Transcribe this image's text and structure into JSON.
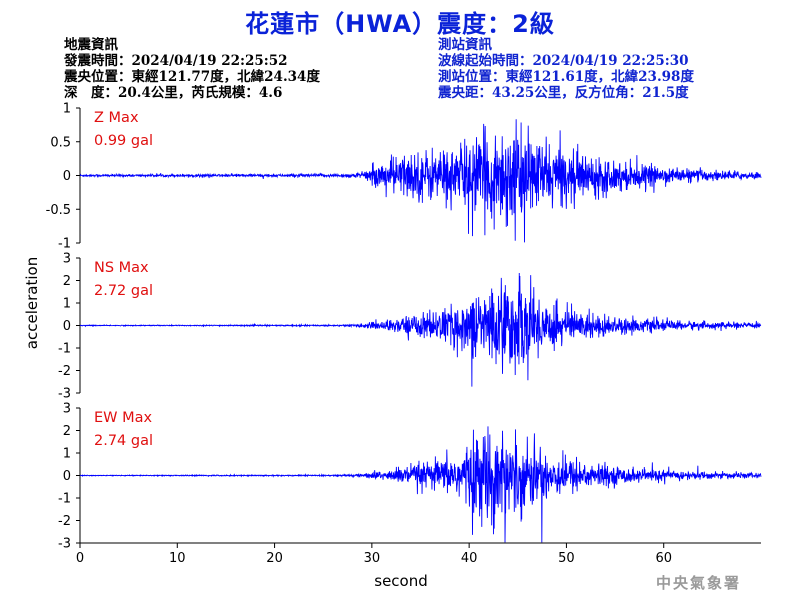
{
  "title": "花蓮市（HWA）震度：2級",
  "quake_info": {
    "heading": "地震資訊",
    "time": "發震時間：2024/04/19 22:25:52",
    "location": "震央位置：東經121.77度，北緯24.34度",
    "depth": "深　度：20.4公里，芮氏規模：4.6"
  },
  "station_info": {
    "heading": "測站資訊",
    "wave_start": "波線起始時間：2024/04/19 22:25:30",
    "location": "測站位置：東經121.61度，北緯23.98度",
    "distance": "震央距：43.25公里，反方位角：21.5度"
  },
  "watermark": "中央氣象署",
  "colors": {
    "trace": "#0000ff",
    "label": "#e01010",
    "title": "#0a22d8"
  },
  "chart_data": {
    "type": "line",
    "xlabel": "second",
    "ylabel": "acceleration",
    "xlim": [
      0,
      70
    ],
    "x_ticks": [
      0,
      10,
      20,
      30,
      40,
      50,
      60
    ],
    "panels": [
      {
        "component": "Z",
        "max_label": "Z Max",
        "max_value": "0.99 gal",
        "ylim": [
          -1,
          1
        ],
        "y_ticks": [
          1,
          0.5,
          0,
          -0.5,
          -1
        ],
        "y_tick_labels": [
          "1",
          "0.5",
          "0",
          "-0.5",
          "-1"
        ],
        "envelope": {
          "t": [
            0,
            27,
            29,
            32,
            34,
            38,
            42,
            44,
            46,
            50,
            55,
            60,
            65,
            70
          ],
          "amp": [
            0.02,
            0.03,
            0.06,
            0.35,
            0.45,
            0.55,
            0.8,
            0.99,
            0.75,
            0.5,
            0.3,
            0.15,
            0.1,
            0.06
          ]
        }
      },
      {
        "component": "NS",
        "max_label": "NS Max",
        "max_value": "2.72 gal",
        "ylim": [
          -3,
          3
        ],
        "y_ticks": [
          3,
          2,
          1,
          0,
          -1,
          -2,
          -3
        ],
        "y_tick_labels": [
          "3",
          "2",
          "1",
          "0",
          "-1",
          "-2",
          "-3"
        ],
        "envelope": {
          "t": [
            0,
            27,
            29,
            32,
            34,
            38,
            41,
            43,
            45,
            47,
            50,
            55,
            60,
            65,
            70
          ],
          "amp": [
            0.02,
            0.04,
            0.1,
            0.35,
            0.6,
            1.0,
            1.9,
            2.3,
            2.72,
            1.8,
            1.0,
            0.5,
            0.3,
            0.2,
            0.12
          ]
        }
      },
      {
        "component": "EW",
        "max_label": "EW Max",
        "max_value": "2.74 gal",
        "ylim": [
          -3,
          3
        ],
        "y_ticks": [
          3,
          2,
          1,
          0,
          -1,
          -2,
          -3
        ],
        "y_tick_labels": [
          "3",
          "2",
          "1",
          "0",
          "-1",
          "-2",
          "-3"
        ],
        "envelope": {
          "t": [
            0,
            27,
            29,
            32,
            34,
            38,
            41,
            42,
            44,
            46,
            50,
            55,
            60,
            65,
            70
          ],
          "amp": [
            0.02,
            0.04,
            0.1,
            0.35,
            0.6,
            1.0,
            2.4,
            2.74,
            2.3,
            1.9,
            1.0,
            0.5,
            0.3,
            0.2,
            0.12
          ]
        }
      }
    ]
  }
}
